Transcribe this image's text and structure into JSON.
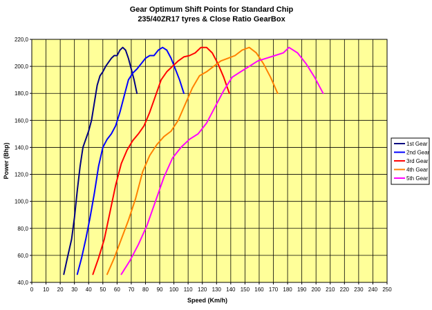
{
  "chart_data": {
    "type": "line",
    "title": "Gear Optimum Shift Points for Standard Chip",
    "subtitle": "235/40ZR17 tyres & Close Ratio GearBox",
    "xlabel": "Speed (Km/h)",
    "ylabel": "Power (Bhp)",
    "xlim": [
      0,
      250
    ],
    "ylim": [
      40,
      220
    ],
    "x_ticks": [
      "0",
      "10",
      "20",
      "30",
      "40",
      "50",
      "60",
      "70",
      "80",
      "90",
      "100",
      "110",
      "120",
      "130",
      "140",
      "150",
      "160",
      "170",
      "180",
      "190",
      "200",
      "210",
      "220",
      "230",
      "240",
      "250"
    ],
    "y_ticks": [
      "40,0",
      "60,0",
      "80,0",
      "100,0",
      "120,0",
      "140,0",
      "160,0",
      "180,0",
      "200,0",
      "220,0"
    ],
    "grid": true,
    "plot_background": "#ffff99",
    "legend_position": "right",
    "series": [
      {
        "name": "1st Gear",
        "color": "#000080",
        "x": [
          22.5,
          25,
          28,
          30,
          32,
          34,
          36,
          38,
          40,
          42,
          44,
          46,
          48,
          50,
          52,
          54,
          56,
          58,
          60,
          62,
          64,
          66,
          68,
          70,
          72,
          74
        ],
        "y": [
          46,
          58,
          72,
          88,
          108,
          126,
          140,
          146,
          152,
          160,
          173,
          186,
          193,
          196,
          200,
          203,
          206,
          208,
          208,
          212,
          214,
          212,
          206,
          198,
          190,
          180
        ]
      },
      {
        "name": "2nd Gear",
        "color": "#0000ff",
        "x": [
          32,
          35,
          38,
          41,
          44,
          47,
          50,
          53,
          56,
          59,
          62,
          65,
          68,
          71,
          74,
          77,
          80,
          83,
          86,
          89,
          92,
          95,
          98,
          101,
          104,
          107
        ],
        "y": [
          46,
          58,
          72,
          88,
          106,
          126,
          140,
          146,
          150,
          156,
          166,
          178,
          190,
          195,
          198,
          202,
          206,
          208,
          208,
          212,
          214,
          212,
          206,
          198,
          190,
          180
        ]
      },
      {
        "name": "3rd Gear",
        "color": "#ff0000",
        "x": [
          43,
          47,
          51,
          55,
          59,
          63,
          67,
          71,
          75,
          79,
          83,
          87,
          91,
          95,
          99,
          103,
          107,
          111,
          115,
          119,
          123,
          127,
          131,
          135,
          139
        ],
        "y": [
          46,
          58,
          72,
          92,
          112,
          128,
          138,
          145,
          150,
          156,
          166,
          178,
          190,
          196,
          200,
          204,
          207,
          208,
          210,
          214,
          214,
          210,
          202,
          192,
          180
        ]
      },
      {
        "name": "4th Gear",
        "color": "#ff8000",
        "x": [
          53,
          58,
          63,
          68,
          73,
          78,
          83,
          88,
          93,
          98,
          103,
          108,
          113,
          118,
          123,
          128,
          133,
          138,
          143,
          148,
          153,
          158,
          163,
          168,
          173
        ],
        "y": [
          46,
          58,
          72,
          86,
          102,
          122,
          134,
          142,
          148,
          152,
          160,
          172,
          184,
          193,
          196,
          200,
          204,
          206,
          208,
          212,
          214,
          210,
          202,
          192,
          180
        ]
      },
      {
        "name": "5th Gear",
        "color": "#ff00ff",
        "x": [
          63,
          69,
          75,
          81,
          87,
          93,
          99,
          105,
          111,
          117,
          123,
          129,
          135,
          141,
          147,
          153,
          159,
          165,
          171,
          177,
          181,
          187,
          193,
          199,
          205
        ],
        "y": [
          46,
          56,
          68,
          82,
          100,
          118,
          132,
          140,
          146,
          150,
          158,
          170,
          182,
          192,
          196,
          200,
          204,
          206,
          208,
          210,
          214,
          210,
          202,
          192,
          180
        ]
      }
    ]
  }
}
